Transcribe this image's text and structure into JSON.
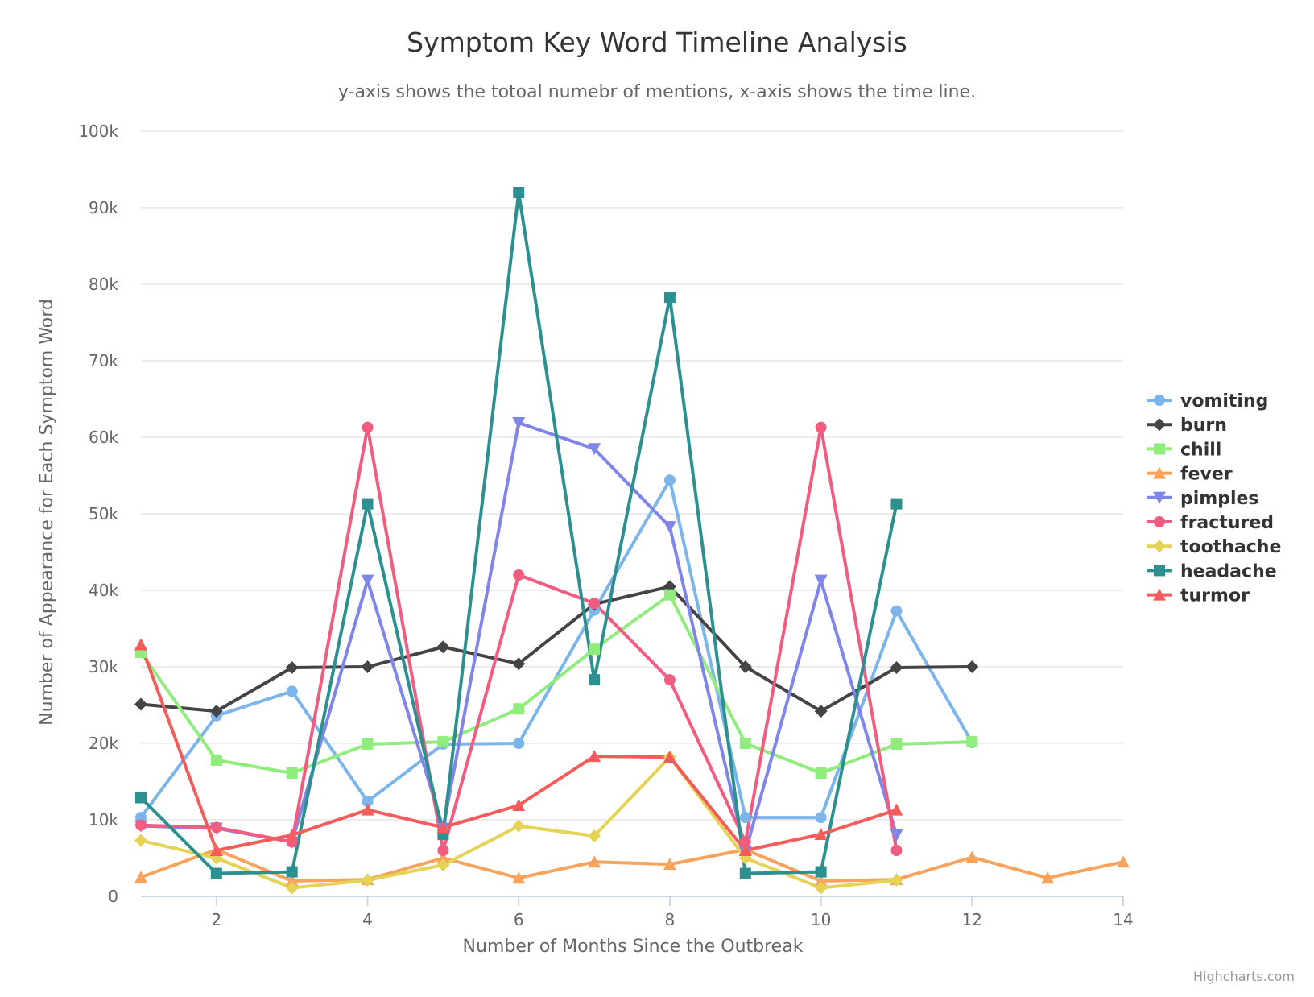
{
  "chart_data": {
    "type": "line",
    "title": "Symptom Key Word Timeline Analysis",
    "subtitle": "y-axis shows the totoal numebr of mentions, x-axis shows the time line.",
    "xlabel": "Number of Months Since the Outbreak",
    "ylabel": "Number of Appearance for Each Symptom Word",
    "xlim": [
      1,
      14
    ],
    "ylim": [
      0,
      100000
    ],
    "x_ticks": [
      2,
      4,
      6,
      8,
      10,
      12,
      14
    ],
    "x_tick_labels": [
      "2",
      "4",
      "6",
      "8",
      "10",
      "12",
      "14"
    ],
    "y_ticks": [
      0,
      10000,
      20000,
      30000,
      40000,
      50000,
      60000,
      70000,
      80000,
      90000,
      100000
    ],
    "y_tick_labels": [
      "0",
      "10k",
      "20k",
      "30k",
      "40k",
      "50k",
      "60k",
      "70k",
      "80k",
      "90k",
      "100k"
    ],
    "grid": true,
    "legend_position": "right-middle",
    "credits": "Highcharts.com",
    "series": [
      {
        "name": "vomiting",
        "color": "#7cb5ec",
        "marker": "circle",
        "x": [
          1,
          2,
          3,
          4,
          5,
          6,
          7,
          8,
          9,
          10,
          11,
          12
        ],
        "values": [
          10300,
          23600,
          26800,
          12400,
          19900,
          20000,
          37400,
          54400,
          10300,
          10300,
          37300,
          20100
        ]
      },
      {
        "name": "burn",
        "color": "#434348",
        "marker": "diamond",
        "x": [
          1,
          2,
          3,
          4,
          5,
          6,
          7,
          8,
          9,
          10,
          11,
          12
        ],
        "values": [
          25100,
          24200,
          29900,
          30000,
          32600,
          30400,
          38200,
          40500,
          30000,
          24200,
          29900,
          30000
        ]
      },
      {
        "name": "chill",
        "color": "#90ed7d",
        "marker": "square",
        "x": [
          1,
          2,
          3,
          4,
          5,
          6,
          7,
          8,
          9,
          10,
          11,
          12
        ],
        "values": [
          31900,
          17800,
          16100,
          19900,
          20200,
          24500,
          32300,
          39400,
          20000,
          16100,
          19900,
          20200
        ]
      },
      {
        "name": "fever",
        "color": "#f7a35c",
        "marker": "triangle",
        "x": [
          1,
          2,
          3,
          4,
          5,
          6,
          7,
          8,
          9,
          10,
          11,
          12,
          13,
          14
        ],
        "values": [
          2500,
          6100,
          2000,
          2200,
          5000,
          2400,
          4500,
          4200,
          6100,
          2000,
          2200,
          5100,
          2400,
          4500
        ]
      },
      {
        "name": "pimples",
        "color": "#8085e9",
        "marker": "triangle-down",
        "x": [
          1,
          2,
          3,
          4,
          5,
          6,
          7,
          8,
          9,
          10,
          11
        ],
        "values": [
          9200,
          8900,
          7100,
          41300,
          8900,
          61900,
          58500,
          48300,
          5800,
          41300,
          8000
        ]
      },
      {
        "name": "fractured",
        "color": "#f15c80",
        "marker": "circle",
        "x": [
          1,
          2,
          3,
          4,
          5,
          6,
          7,
          8,
          9,
          10,
          11
        ],
        "values": [
          9300,
          9000,
          7100,
          61300,
          6000,
          42000,
          38300,
          28300,
          7100,
          61300,
          6000
        ]
      },
      {
        "name": "toothache",
        "color": "#e4d354",
        "marker": "diamond",
        "x": [
          1,
          2,
          3,
          4,
          5,
          6,
          7,
          8,
          9,
          10,
          11
        ],
        "values": [
          7300,
          5000,
          1100,
          2100,
          4100,
          9200,
          7900,
          18200,
          5000,
          1100,
          2100
        ]
      },
      {
        "name": "headache",
        "color": "#2b908f",
        "marker": "square",
        "x": [
          1,
          2,
          3,
          4,
          5,
          6,
          7,
          8,
          9,
          10,
          11
        ],
        "values": [
          12900,
          3000,
          3200,
          51300,
          8100,
          92000,
          28300,
          78300,
          3000,
          3200,
          51300
        ]
      },
      {
        "name": "turmor",
        "color": "#f45b5b",
        "marker": "triangle",
        "x": [
          1,
          2,
          3,
          4,
          5,
          6,
          7,
          8,
          9,
          10,
          11
        ],
        "values": [
          32900,
          6000,
          8000,
          11300,
          9000,
          11900,
          18300,
          18200,
          6000,
          8100,
          11300
        ]
      }
    ]
  }
}
